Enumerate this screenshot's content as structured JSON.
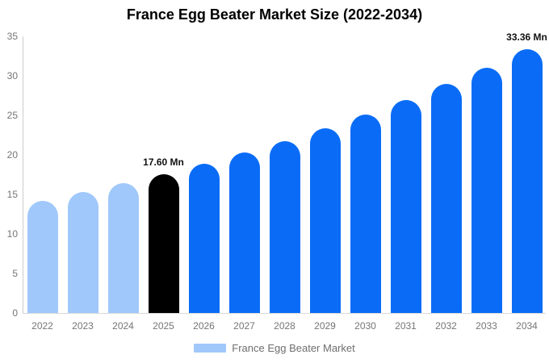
{
  "title": "France Egg Beater Market Size (2022-2034)",
  "legend": {
    "label": "France Egg Beater Market",
    "swatch_color": "#a0c8fa"
  },
  "colors": {
    "historical": "#a0c8fa",
    "base_year": "#000000",
    "forecast": "#0a6cf6",
    "axis": "#cccccc",
    "baseline": "#d9d9d9",
    "tick_text": "#757575",
    "annotation_text": "#111111"
  },
  "chart_data": {
    "type": "bar",
    "title": "France Egg Beater Market Size (2022-2034)",
    "xlabel": "",
    "ylabel": "",
    "unit": "Mn",
    "categories": [
      "2022",
      "2023",
      "2024",
      "2025",
      "2026",
      "2027",
      "2028",
      "2029",
      "2030",
      "2031",
      "2032",
      "2033",
      "2034"
    ],
    "values": [
      14.23,
      15.27,
      16.39,
      17.6,
      18.9,
      20.29,
      21.78,
      23.38,
      25.1,
      26.95,
      28.93,
      31.06,
      33.36
    ],
    "bar_roles": [
      "historical",
      "historical",
      "historical",
      "base_year",
      "forecast",
      "forecast",
      "forecast",
      "forecast",
      "forecast",
      "forecast",
      "forecast",
      "forecast",
      "forecast"
    ],
    "annotations": [
      {
        "category": "2025",
        "index": 3,
        "text": "17.60 Mn"
      },
      {
        "category": "2034",
        "index": 12,
        "text": "33.36 Mn"
      }
    ],
    "ylim": [
      0,
      35
    ],
    "yticks": [
      0,
      5,
      10,
      15,
      20,
      25,
      30,
      35
    ],
    "grid": false,
    "legend_entries": [
      "France Egg Beater Market"
    ],
    "legend_position": "bottom-center"
  }
}
